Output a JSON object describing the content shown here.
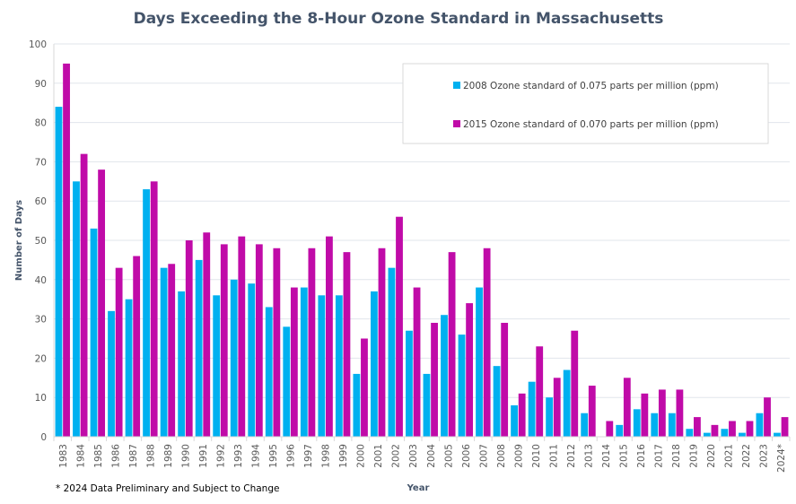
{
  "chart_data": {
    "type": "bar",
    "title": "Days Exceeding the 8-Hour Ozone Standard in Massachusetts",
    "xlabel": "Year",
    "ylabel": "Number of Days",
    "ylim": [
      0,
      100
    ],
    "yticks": [
      0,
      10,
      20,
      30,
      40,
      50,
      60,
      70,
      80,
      90,
      100
    ],
    "grid": true,
    "legend_position": "top-right",
    "categories": [
      "1983",
      "1984",
      "1985",
      "1986",
      "1987",
      "1988",
      "1989",
      "1990",
      "1991",
      "1992",
      "1993",
      "1994",
      "1995",
      "1996",
      "1997",
      "1998",
      "1999",
      "2000",
      "2001",
      "2002",
      "2003",
      "2004",
      "2005",
      "2006",
      "2007",
      "2008",
      "2009",
      "2010",
      "2011",
      "2012",
      "2013",
      "2014",
      "2015",
      "2016",
      "2017",
      "2018",
      "2019",
      "2020",
      "2021",
      "2022",
      "2023",
      "2024*"
    ],
    "series": [
      {
        "name": "2008 Ozone standard of 0.075 parts per million (ppm)",
        "color": "#00b0f0",
        "values": [
          84,
          65,
          53,
          32,
          35,
          63,
          43,
          37,
          45,
          36,
          40,
          39,
          33,
          28,
          38,
          36,
          36,
          16,
          37,
          43,
          27,
          16,
          31,
          26,
          38,
          18,
          8,
          14,
          10,
          17,
          6,
          0,
          3,
          7,
          6,
          6,
          2,
          1,
          2,
          1,
          6,
          1
        ]
      },
      {
        "name": "2015 Ozone standard of 0.070 parts per million (ppm)",
        "color": "#c00ba8",
        "values": [
          95,
          72,
          68,
          43,
          46,
          65,
          44,
          50,
          52,
          49,
          51,
          49,
          48,
          38,
          48,
          51,
          47,
          25,
          48,
          56,
          38,
          29,
          47,
          34,
          48,
          29,
          11,
          23,
          15,
          27,
          13,
          4,
          15,
          11,
          12,
          12,
          5,
          3,
          4,
          4,
          10,
          5
        ]
      }
    ],
    "footnote": "* 2024 Data Preliminary and Subject to Change"
  }
}
